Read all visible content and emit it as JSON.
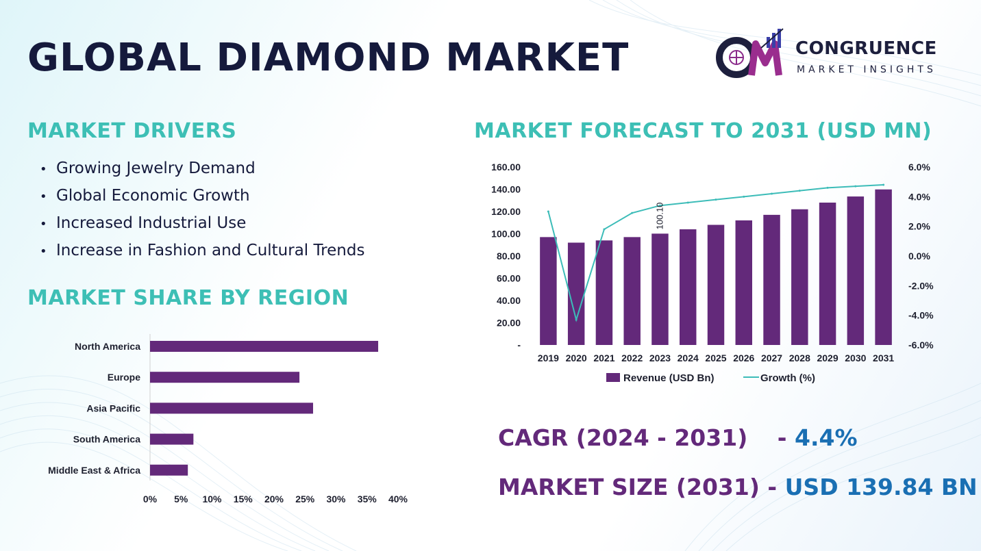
{
  "title": "GLOBAL DIAMOND MARKET",
  "brand": {
    "name": "CONGRUENCE",
    "tagline": "MARKET INSIGHTS"
  },
  "drivers": {
    "heading": "MARKET DRIVERS",
    "items": [
      "Growing Jewelry Demand",
      "Global Economic Growth",
      "Increased Industrial Use",
      "Increase in Fashion and Cultural Trends"
    ]
  },
  "forecast_heading": "MARKET FORECAST TO 2031 (USD MN)",
  "region_heading": "MARKET SHARE BY REGION",
  "stats": {
    "cagr_label": "CAGR (2024 - 2031)",
    "cagr_sep": "-",
    "cagr_value": "4.4%",
    "size_label": "MARKET SIZE (2031)",
    "size_sep": "-",
    "size_value": "USD 139.84 BN"
  },
  "colors": {
    "accent_teal": "#3dbfb5",
    "bar_purple": "#63297a",
    "line_teal": "#3cbcb8",
    "value_blue": "#1a6fb3",
    "title_navy": "#151a3c"
  },
  "chart_data": [
    {
      "type": "bar",
      "orientation": "vertical",
      "categories": [
        "2019",
        "2020",
        "2021",
        "2022",
        "2023",
        "2024",
        "2025",
        "2026",
        "2027",
        "2028",
        "2029",
        "2030",
        "2031"
      ],
      "series": [
        {
          "name": "Revenue (USD Bn)",
          "type": "bar",
          "axis": "left",
          "values": [
            97,
            92,
            94,
            97,
            100.1,
            104,
            108,
            112,
            117,
            122,
            128,
            133.5,
            139.84
          ]
        },
        {
          "name": "Growth (%)",
          "type": "line",
          "axis": "right",
          "values": [
            3.0,
            -4.3,
            1.8,
            2.9,
            3.4,
            3.6,
            3.8,
            4.0,
            4.2,
            4.4,
            4.6,
            4.7,
            4.8
          ]
        }
      ],
      "data_labels": [
        {
          "category": "2023",
          "text": "100.10"
        }
      ],
      "y_left": {
        "ylim": [
          0,
          160
        ],
        "ticks": [
          "-",
          "20.00",
          "40.00",
          "60.00",
          "80.00",
          "100.00",
          "120.00",
          "140.00",
          "160.00"
        ]
      },
      "y_right": {
        "ylim": [
          -6,
          6
        ],
        "ticks": [
          "-6.0%",
          "-4.0%",
          "-2.0%",
          "0.0%",
          "2.0%",
          "4.0%",
          "6.0%"
        ]
      },
      "legend": "bottom",
      "grid": false
    },
    {
      "type": "bar",
      "orientation": "horizontal",
      "categories": [
        "North America",
        "Europe",
        "Asia Pacific",
        "South America",
        "Middle East & Africa"
      ],
      "values": [
        36.8,
        24.1,
        26.3,
        7.0,
        6.1
      ],
      "xlim": [
        0,
        40
      ],
      "x_ticks": [
        "0%",
        "5%",
        "10%",
        "15%",
        "20%",
        "25%",
        "30%",
        "35%",
        "40%"
      ],
      "grid": false
    }
  ]
}
